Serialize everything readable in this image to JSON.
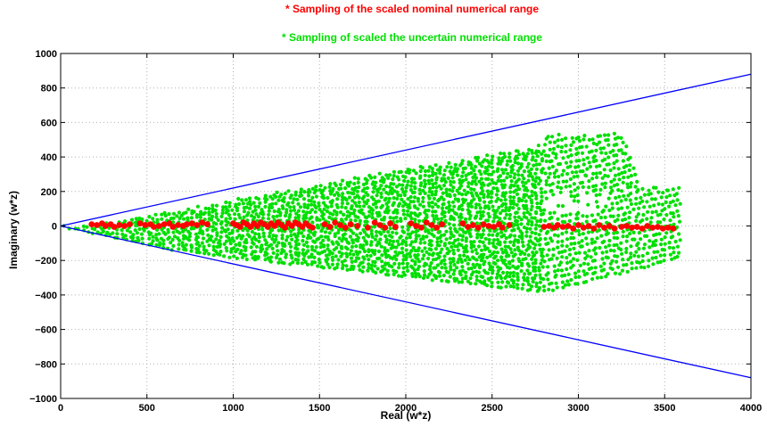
{
  "chart_data": {
    "type": "scatter",
    "title_lines": [
      "* Sampling of the  scaled nominal numerical range",
      "* Sampling of scaled the   uncertain numerical range"
    ],
    "xlabel": "Real (w*z)",
    "ylabel": "Imaginary (w*z)",
    "xlim": [
      0,
      4000
    ],
    "ylim": [
      -1000,
      1000
    ],
    "x_ticks": [
      0,
      500,
      1000,
      1500,
      2000,
      2500,
      3000,
      3500,
      4000
    ],
    "y_ticks": [
      -1000,
      -800,
      -600,
      -400,
      -200,
      0,
      200,
      400,
      600,
      800,
      1000
    ],
    "x_tick_labels": [
      "0",
      "500",
      "1000",
      "1500",
      "2000",
      "2500",
      "3000",
      "3500",
      "4000"
    ],
    "y_tick_labels": [
      "−1000",
      "−800",
      "−600",
      "−400",
      "−200",
      "0",
      "200",
      "400",
      "600",
      "800",
      "1000"
    ],
    "grid": true,
    "colors": {
      "nominal": "#ff0000",
      "uncertain": "#00e000",
      "boundary": "#0000ff",
      "title_nominal": "#ff0000",
      "title_uncertain": "#00e000"
    },
    "boundary_lines": [
      {
        "x": [
          0,
          4000
        ],
        "y": [
          0,
          880
        ]
      },
      {
        "x": [
          0,
          4000
        ],
        "y": [
          0,
          -880
        ]
      }
    ],
    "series": [
      {
        "points": [
          [
            180,
            10
          ],
          [
            210,
            5
          ],
          [
            240,
            15
          ],
          [
            260,
            0
          ],
          [
            290,
            10
          ],
          [
            310,
            -5
          ],
          [
            340,
            5
          ],
          [
            370,
            0
          ],
          [
            400,
            10
          ],
          [
            460,
            15
          ],
          [
            490,
            5
          ],
          [
            520,
            10
          ],
          [
            540,
            -5
          ],
          [
            570,
            0
          ],
          [
            600,
            10
          ],
          [
            630,
            15
          ],
          [
            650,
            -5
          ],
          [
            680,
            5
          ],
          [
            710,
            0
          ],
          [
            730,
            10
          ],
          [
            760,
            15
          ],
          [
            790,
            5
          ],
          [
            820,
            20
          ],
          [
            850,
            10
          ],
          [
            1000,
            15
          ],
          [
            1020,
            5
          ],
          [
            1040,
            -5
          ],
          [
            1060,
            20
          ],
          [
            1080,
            10
          ],
          [
            1100,
            -5
          ],
          [
            1120,
            15
          ],
          [
            1140,
            0
          ],
          [
            1160,
            20
          ],
          [
            1180,
            10
          ],
          [
            1200,
            -5
          ],
          [
            1220,
            15
          ],
          [
            1240,
            0
          ],
          [
            1260,
            20
          ],
          [
            1280,
            5
          ],
          [
            1300,
            -10
          ],
          [
            1320,
            15
          ],
          [
            1340,
            0
          ],
          [
            1360,
            20
          ],
          [
            1380,
            10
          ],
          [
            1400,
            -5
          ],
          [
            1420,
            15
          ],
          [
            1440,
            0
          ],
          [
            1460,
            -10
          ],
          [
            1530,
            10
          ],
          [
            1560,
            -5
          ],
          [
            1590,
            20
          ],
          [
            1620,
            5
          ],
          [
            1650,
            -10
          ],
          [
            1680,
            10
          ],
          [
            1720,
            0
          ],
          [
            1780,
            -10
          ],
          [
            1820,
            20
          ],
          [
            1850,
            5
          ],
          [
            1880,
            -10
          ],
          [
            1910,
            15
          ],
          [
            1940,
            -5
          ],
          [
            2030,
            15
          ],
          [
            2060,
            0
          ],
          [
            2090,
            -10
          ],
          [
            2120,
            20
          ],
          [
            2150,
            5
          ],
          [
            2180,
            -10
          ],
          [
            2210,
            10
          ],
          [
            2330,
            15
          ],
          [
            2360,
            -5
          ],
          [
            2390,
            5
          ],
          [
            2420,
            -10
          ],
          [
            2450,
            10
          ],
          [
            2480,
            0
          ],
          [
            2510,
            -5
          ],
          [
            2540,
            10
          ],
          [
            2560,
            -10
          ],
          [
            2600,
            5
          ],
          [
            2800,
            -5
          ],
          [
            2830,
            0
          ],
          [
            2860,
            -10
          ],
          [
            2880,
            5
          ],
          [
            2910,
            -5
          ],
          [
            2940,
            0
          ],
          [
            2970,
            -15
          ],
          [
            3000,
            5
          ],
          [
            3030,
            -10
          ],
          [
            3060,
            0
          ],
          [
            3090,
            -15
          ],
          [
            3120,
            5
          ],
          [
            3150,
            -10
          ],
          [
            3180,
            0
          ],
          [
            3210,
            -15
          ],
          [
            3250,
            -5
          ],
          [
            3280,
            0
          ],
          [
            3310,
            -10
          ],
          [
            3340,
            -5
          ],
          [
            3370,
            -15
          ],
          [
            3400,
            0
          ],
          [
            3430,
            -10
          ],
          [
            3460,
            -5
          ],
          [
            3490,
            -15
          ],
          [
            3520,
            -10
          ],
          [
            3550,
            -15
          ]
        ]
      }
    ]
  }
}
